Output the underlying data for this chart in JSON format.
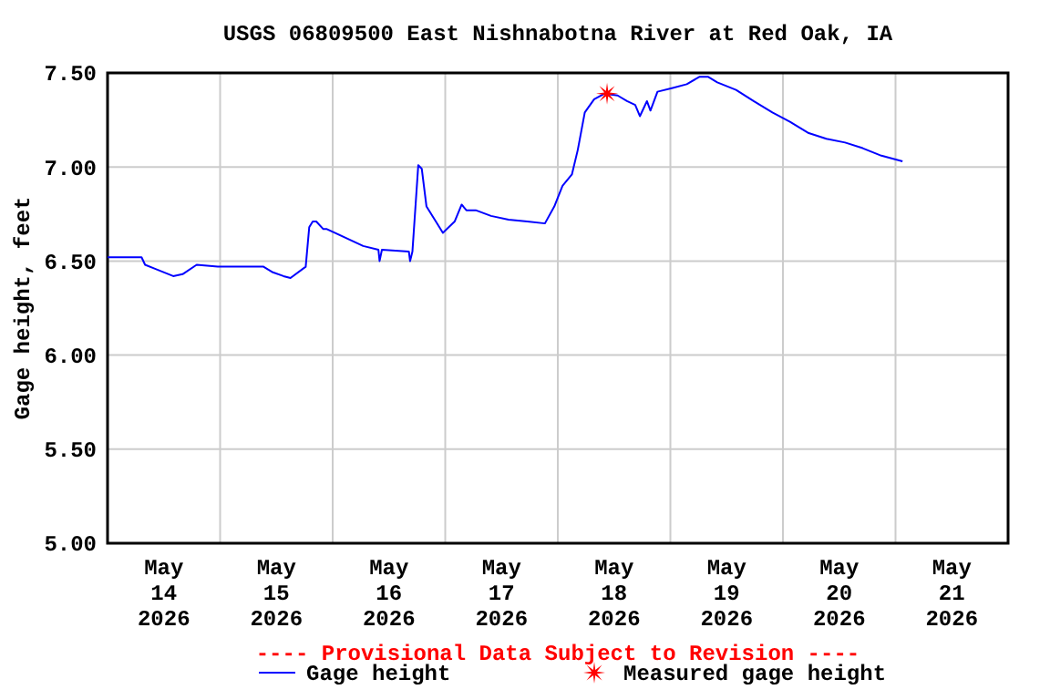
{
  "chart_data": {
    "type": "line",
    "title": "USGS 06809500 East Nishnabotna River at Red Oak, IA",
    "ylabel": "Gage height, feet",
    "annotations": [
      "---- Provisional Data Subject to Revision ----"
    ],
    "xlim": [
      "2026-05-14T00:00",
      "2026-05-22T00:00"
    ],
    "xticks": [
      {
        "value": "2026-05-14T12:00",
        "label": "May\n14\n2026"
      },
      {
        "value": "2026-05-15T00:00",
        "label": null
      },
      {
        "value": "2026-05-15T12:00",
        "label": "May\n15\n2026"
      },
      {
        "value": "2026-05-16T00:00",
        "label": null
      },
      {
        "value": "2026-05-16T12:00",
        "label": "May\n16\n2026"
      },
      {
        "value": "2026-05-17T00:00",
        "label": null
      },
      {
        "value": "2026-05-17T12:00",
        "label": "May\n17\n2026"
      },
      {
        "value": "2026-05-18T00:00",
        "label": null
      },
      {
        "value": "2026-05-18T12:00",
        "label": "May\n18\n2026"
      },
      {
        "value": "2026-05-19T00:00",
        "label": null
      },
      {
        "value": "2026-05-19T12:00",
        "label": "May\n19\n2026"
      },
      {
        "value": "2026-05-20T00:00",
        "label": null
      },
      {
        "value": "2026-05-20T12:00",
        "label": "May\n20\n2026"
      },
      {
        "value": "2026-05-21T00:00",
        "label": null
      },
      {
        "value": "2026-05-21T12:00",
        "label": "May\n21\n2026"
      }
    ],
    "ylim": [
      5.0,
      7.5
    ],
    "yticks": [
      {
        "value": 5.0,
        "label": "5.00"
      },
      {
        "value": 5.5,
        "label": "5.50"
      },
      {
        "value": 6.0,
        "label": "6.00"
      },
      {
        "value": 6.5,
        "label": "6.50"
      },
      {
        "value": 7.0,
        "label": "7.00"
      },
      {
        "value": 7.5,
        "label": "7.50"
      }
    ],
    "grid": true,
    "legend": "bottom",
    "series": [
      {
        "name": "Gage height",
        "color": "#0000ff",
        "marker": "none",
        "x": [
          "2026-05-14T00:00",
          "2026-05-14T07:15",
          "2026-05-14T08:00",
          "2026-05-14T10:00",
          "2026-05-14T14:00",
          "2026-05-14T16:00",
          "2026-05-14T19:00",
          "2026-05-14T23:30",
          "2026-05-15T09:15",
          "2026-05-15T11:15",
          "2026-05-15T13:30",
          "2026-05-15T15:00",
          "2026-05-15T18:15",
          "2026-05-15T19:00",
          "2026-05-15T19:45",
          "2026-05-15T20:30",
          "2026-05-15T22:00",
          "2026-05-15T22:45",
          "2026-05-16T06:30",
          "2026-05-16T09:45",
          "2026-05-16T10:00",
          "2026-05-16T10:30",
          "2026-05-16T16:15",
          "2026-05-16T16:30",
          "2026-05-16T17:00",
          "2026-05-16T18:15",
          "2026-05-16T19:00",
          "2026-05-16T20:00",
          "2026-05-16T22:00",
          "2026-05-16T23:30",
          "2026-05-17T02:00",
          "2026-05-17T03:30",
          "2026-05-17T04:30",
          "2026-05-17T06:30",
          "2026-05-17T09:45",
          "2026-05-17T13:30",
          "2026-05-17T17:30",
          "2026-05-17T21:15",
          "2026-05-17T23:15",
          "2026-05-18T01:00",
          "2026-05-18T03:00",
          "2026-05-18T04:15",
          "2026-05-18T05:45",
          "2026-05-18T07:45",
          "2026-05-18T10:00",
          "2026-05-18T12:45",
          "2026-05-18T14:45",
          "2026-05-18T16:30",
          "2026-05-18T17:30",
          "2026-05-18T19:00",
          "2026-05-18T19:45",
          "2026-05-18T21:15",
          "2026-05-19T00:30",
          "2026-05-19T03:30",
          "2026-05-19T06:15",
          "2026-05-19T08:00",
          "2026-05-19T10:00",
          "2026-05-19T14:00",
          "2026-05-19T17:45",
          "2026-05-19T21:45",
          "2026-05-20T01:30",
          "2026-05-20T05:30",
          "2026-05-20T09:15",
          "2026-05-20T13:15",
          "2026-05-20T17:00",
          "2026-05-20T21:00",
          "2026-05-21T01:30"
        ],
        "values": [
          6.52,
          6.52,
          6.48,
          6.46,
          6.42,
          6.43,
          6.48,
          6.47,
          6.47,
          6.44,
          6.42,
          6.41,
          6.47,
          6.68,
          6.71,
          6.71,
          6.67,
          6.67,
          6.58,
          6.56,
          6.5,
          6.56,
          6.55,
          6.5,
          6.55,
          7.01,
          6.99,
          6.79,
          6.71,
          6.65,
          6.71,
          6.8,
          6.77,
          6.77,
          6.74,
          6.72,
          6.71,
          6.7,
          6.79,
          6.9,
          6.96,
          7.09,
          7.29,
          7.36,
          7.39,
          7.38,
          7.35,
          7.33,
          7.27,
          7.35,
          7.3,
          7.4,
          7.42,
          7.44,
          7.48,
          7.48,
          7.45,
          7.41,
          7.35,
          7.29,
          7.24,
          7.18,
          7.15,
          7.13,
          7.1,
          7.06,
          7.03
        ]
      },
      {
        "name": "Measured gage height",
        "type": "scatter",
        "color": "#ff0000",
        "marker": "star",
        "x": [
          "2026-05-18T10:30"
        ],
        "values": [
          7.39
        ]
      }
    ]
  }
}
